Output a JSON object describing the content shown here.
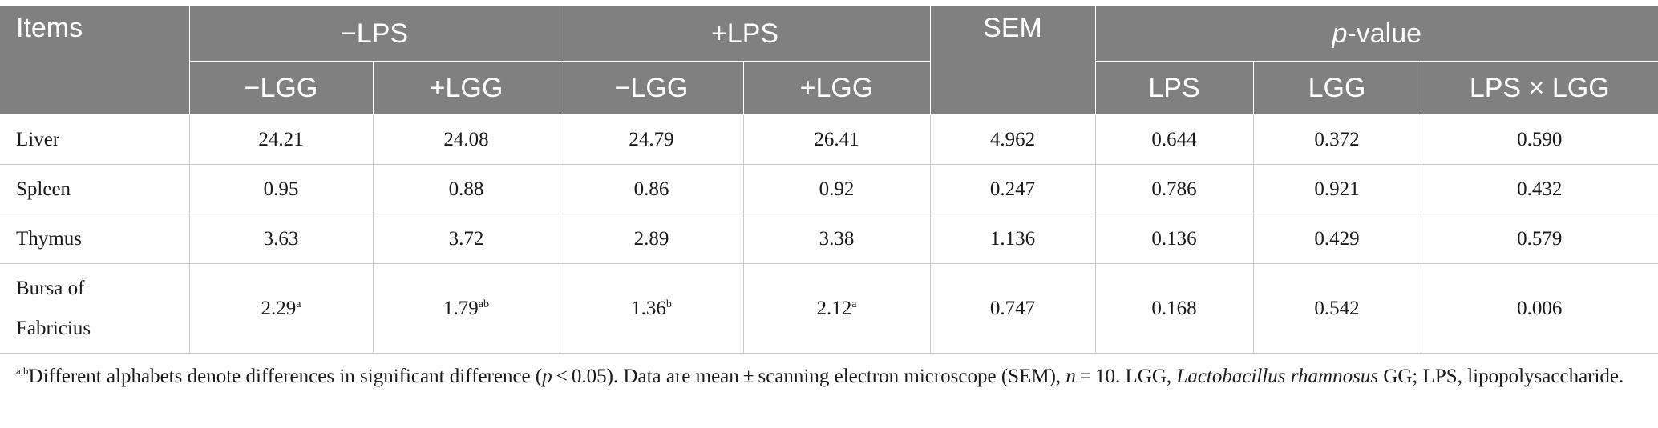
{
  "header": {
    "items": "Items",
    "minus_lps": "−LPS",
    "plus_lps": "+LPS",
    "sem": "SEM",
    "pvalue_p": "p",
    "pvalue_rest": "-value",
    "minus_lgg_1": "−LGG",
    "plus_lgg_1": "+LGG",
    "minus_lgg_2": "−LGG",
    "plus_lgg_2": "+LGG",
    "p_lps": "LPS",
    "p_lgg": "LGG",
    "p_interaction": "LPS × LGG"
  },
  "rows": [
    {
      "item": "Liver",
      "v1": "24.21",
      "s1": "",
      "v2": "24.08",
      "s2": "",
      "v3": "24.79",
      "s3": "",
      "v4": "26.41",
      "s4": "",
      "sem": "4.962",
      "p_lps": "0.644",
      "p_lgg": "0.372",
      "p_int": "0.590"
    },
    {
      "item": "Spleen",
      "v1": "0.95",
      "s1": "",
      "v2": "0.88",
      "s2": "",
      "v3": "0.86",
      "s3": "",
      "v4": "0.92",
      "s4": "",
      "sem": "0.247",
      "p_lps": "0.786",
      "p_lgg": "0.921",
      "p_int": "0.432"
    },
    {
      "item": "Thymus",
      "v1": "3.63",
      "s1": "",
      "v2": "3.72",
      "s2": "",
      "v3": "2.89",
      "s3": "",
      "v4": "3.38",
      "s4": "",
      "sem": "1.136",
      "p_lps": "0.136",
      "p_lgg": "0.429",
      "p_int": "0.579"
    },
    {
      "item_line1": "Bursa of",
      "item_line2": "Fabricius",
      "v1": "2.29",
      "s1": "a",
      "v2": "1.79",
      "s2": "ab",
      "v3": "1.36",
      "s3": "b",
      "v4": "2.12",
      "s4": "a",
      "sem": "0.747",
      "p_lps": "0.168",
      "p_lgg": "0.542",
      "p_int": "0.006"
    }
  ],
  "footnote": {
    "sup": "a,b",
    "text1": "Different alphabets denote differences in significant difference (",
    "p": "p",
    "text2": " < 0.05). Data are mean ± scanning electron microscope (SEM), ",
    "n": "n",
    "text3": " = 10. LGG, ",
    "species": "Lactobacillus rhamnosus",
    "text4": " GG; LPS, lipopolysaccharide."
  }
}
